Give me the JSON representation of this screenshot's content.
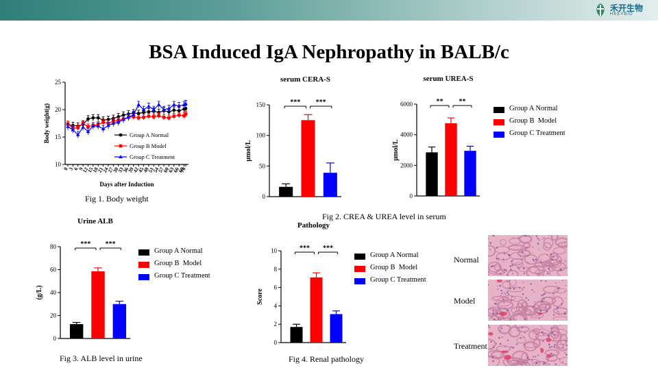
{
  "header": {
    "title": "BSA Induced IgA Nephropathy in BALB/c",
    "logo_text": "禾开生物",
    "logo_subtext": "HKEYBIO"
  },
  "colors": {
    "normal": "#000000",
    "model": "#ff0000",
    "treatment": "#0000ff"
  },
  "legend": [
    "Group A Normal",
    "Group B  Model",
    "Group C Treatment"
  ],
  "captions": {
    "fig1": "Fig 1. Body weight",
    "fig2": "Fig 2. CREA & UREA level in serum",
    "fig3": "Fig 3. ALB level in urine",
    "fig4": "Fig 4. Renal pathology"
  },
  "pathology_images": {
    "normal": "Normal",
    "model": "Model",
    "treatment": "Treatment"
  },
  "chart_data": [
    {
      "id": "body_weight",
      "type": "line",
      "title": "",
      "xlabel": "Days after Induction",
      "ylabel": "Body weight(g)",
      "ylim": [
        10,
        25
      ],
      "yticks": [
        10,
        15,
        20,
        25
      ],
      "x": [
        0,
        3,
        6,
        9,
        12,
        15,
        18,
        21,
        24,
        27,
        30,
        33,
        36,
        39,
        42,
        45,
        48,
        51,
        54,
        57,
        60,
        63,
        66,
        69,
        70
      ],
      "x_tick_labels": [
        "0",
        "3",
        "6",
        "9",
        "12",
        "15",
        "18",
        "21",
        "24",
        "27",
        "30",
        "33",
        "36",
        "39",
        "42",
        "45",
        "48",
        "51",
        "54",
        "57",
        "60",
        "63",
        "66",
        "69",
        "70"
      ],
      "legend": [
        "Group A Normal",
        "Group B  Model",
        "Group C Treatment"
      ],
      "series": [
        {
          "name": "Group A Normal",
          "color": "#000000",
          "marker": "circle",
          "error": 0.6,
          "values": [
            17.3,
            17.1,
            17.0,
            17.3,
            18.3,
            18.5,
            18.5,
            18.1,
            18.2,
            18.4,
            18.7,
            19.0,
            19.2,
            19.4,
            19.3,
            19.5,
            19.6,
            19.7,
            19.5,
            19.8,
            19.6,
            19.9,
            19.8,
            20.1,
            20.2
          ]
        },
        {
          "name": "Group B  Model",
          "color": "#ff0000",
          "marker": "square",
          "error": 0.5,
          "values": [
            17.4,
            16.6,
            16.7,
            17.5,
            16.9,
            17.1,
            17.3,
            17.7,
            17.5,
            17.9,
            18.0,
            18.3,
            18.6,
            18.7,
            18.5,
            18.6,
            18.8,
            18.7,
            18.9,
            18.6,
            18.5,
            18.8,
            19.0,
            18.9,
            19.2
          ]
        },
        {
          "name": "Group C Treatment",
          "color": "#0000ff",
          "marker": "triangle",
          "error": 0.6,
          "values": [
            16.9,
            16.3,
            15.4,
            16.8,
            16.0,
            17.0,
            17.0,
            16.5,
            17.1,
            17.5,
            17.7,
            18.2,
            18.6,
            19.1,
            20.9,
            20.0,
            20.6,
            20.0,
            20.9,
            20.0,
            20.2,
            20.9,
            20.7,
            20.9,
            21.1
          ]
        }
      ]
    },
    {
      "id": "serum_crea",
      "type": "bar",
      "title": "serum CERA-S",
      "xlabel": "",
      "ylabel": "μmol/L",
      "ylim": [
        0,
        150
      ],
      "yticks": [
        0,
        50,
        100,
        150
      ],
      "categories": [
        "Group A Normal",
        "Group B  Model",
        "Group C Treatment"
      ],
      "values": [
        16,
        125,
        39
      ],
      "errors": [
        5,
        9,
        16
      ],
      "significance": [
        {
          "from": 0,
          "to": 1,
          "label": "***"
        },
        {
          "from": 1,
          "to": 2,
          "label": "***"
        }
      ]
    },
    {
      "id": "serum_urea",
      "type": "bar",
      "title": "serum UREA-S",
      "xlabel": "",
      "ylabel": "μmol/L",
      "ylim": [
        0,
        6000
      ],
      "yticks": [
        0,
        2000,
        4000,
        6000
      ],
      "categories": [
        "Group A Normal",
        "Group B  Model",
        "Group C Treatment"
      ],
      "values": [
        2850,
        4750,
        2950
      ],
      "errors": [
        350,
        350,
        300
      ],
      "significance": [
        {
          "from": 0,
          "to": 1,
          "label": "**"
        },
        {
          "from": 1,
          "to": 2,
          "label": "**"
        }
      ]
    },
    {
      "id": "urine_alb",
      "type": "bar",
      "title": "Urine ALB",
      "xlabel": "",
      "ylabel": "(g/L)",
      "ylim": [
        0,
        80
      ],
      "yticks": [
        0,
        20,
        40,
        60,
        80
      ],
      "categories": [
        "Group A Normal",
        "Group B  Model",
        "Group C Treatment"
      ],
      "values": [
        12.5,
        58.5,
        30
      ],
      "errors": [
        1.5,
        3,
        2.5
      ],
      "significance": [
        {
          "from": 0,
          "to": 1,
          "label": "***"
        },
        {
          "from": 1,
          "to": 2,
          "label": "***"
        }
      ]
    },
    {
      "id": "pathology_score",
      "type": "bar",
      "title": "Pathology",
      "xlabel": "",
      "ylabel": "Score",
      "ylim": [
        0,
        10
      ],
      "yticks": [
        0,
        2,
        4,
        6,
        8,
        10
      ],
      "categories": [
        "Group A Normal",
        "Group B  Model",
        "Group C Treatment"
      ],
      "values": [
        1.7,
        7.1,
        3.1
      ],
      "errors": [
        0.3,
        0.5,
        0.35
      ],
      "significance": [
        {
          "from": 0,
          "to": 1,
          "label": "***"
        },
        {
          "from": 1,
          "to": 2,
          "label": "***"
        }
      ]
    }
  ]
}
